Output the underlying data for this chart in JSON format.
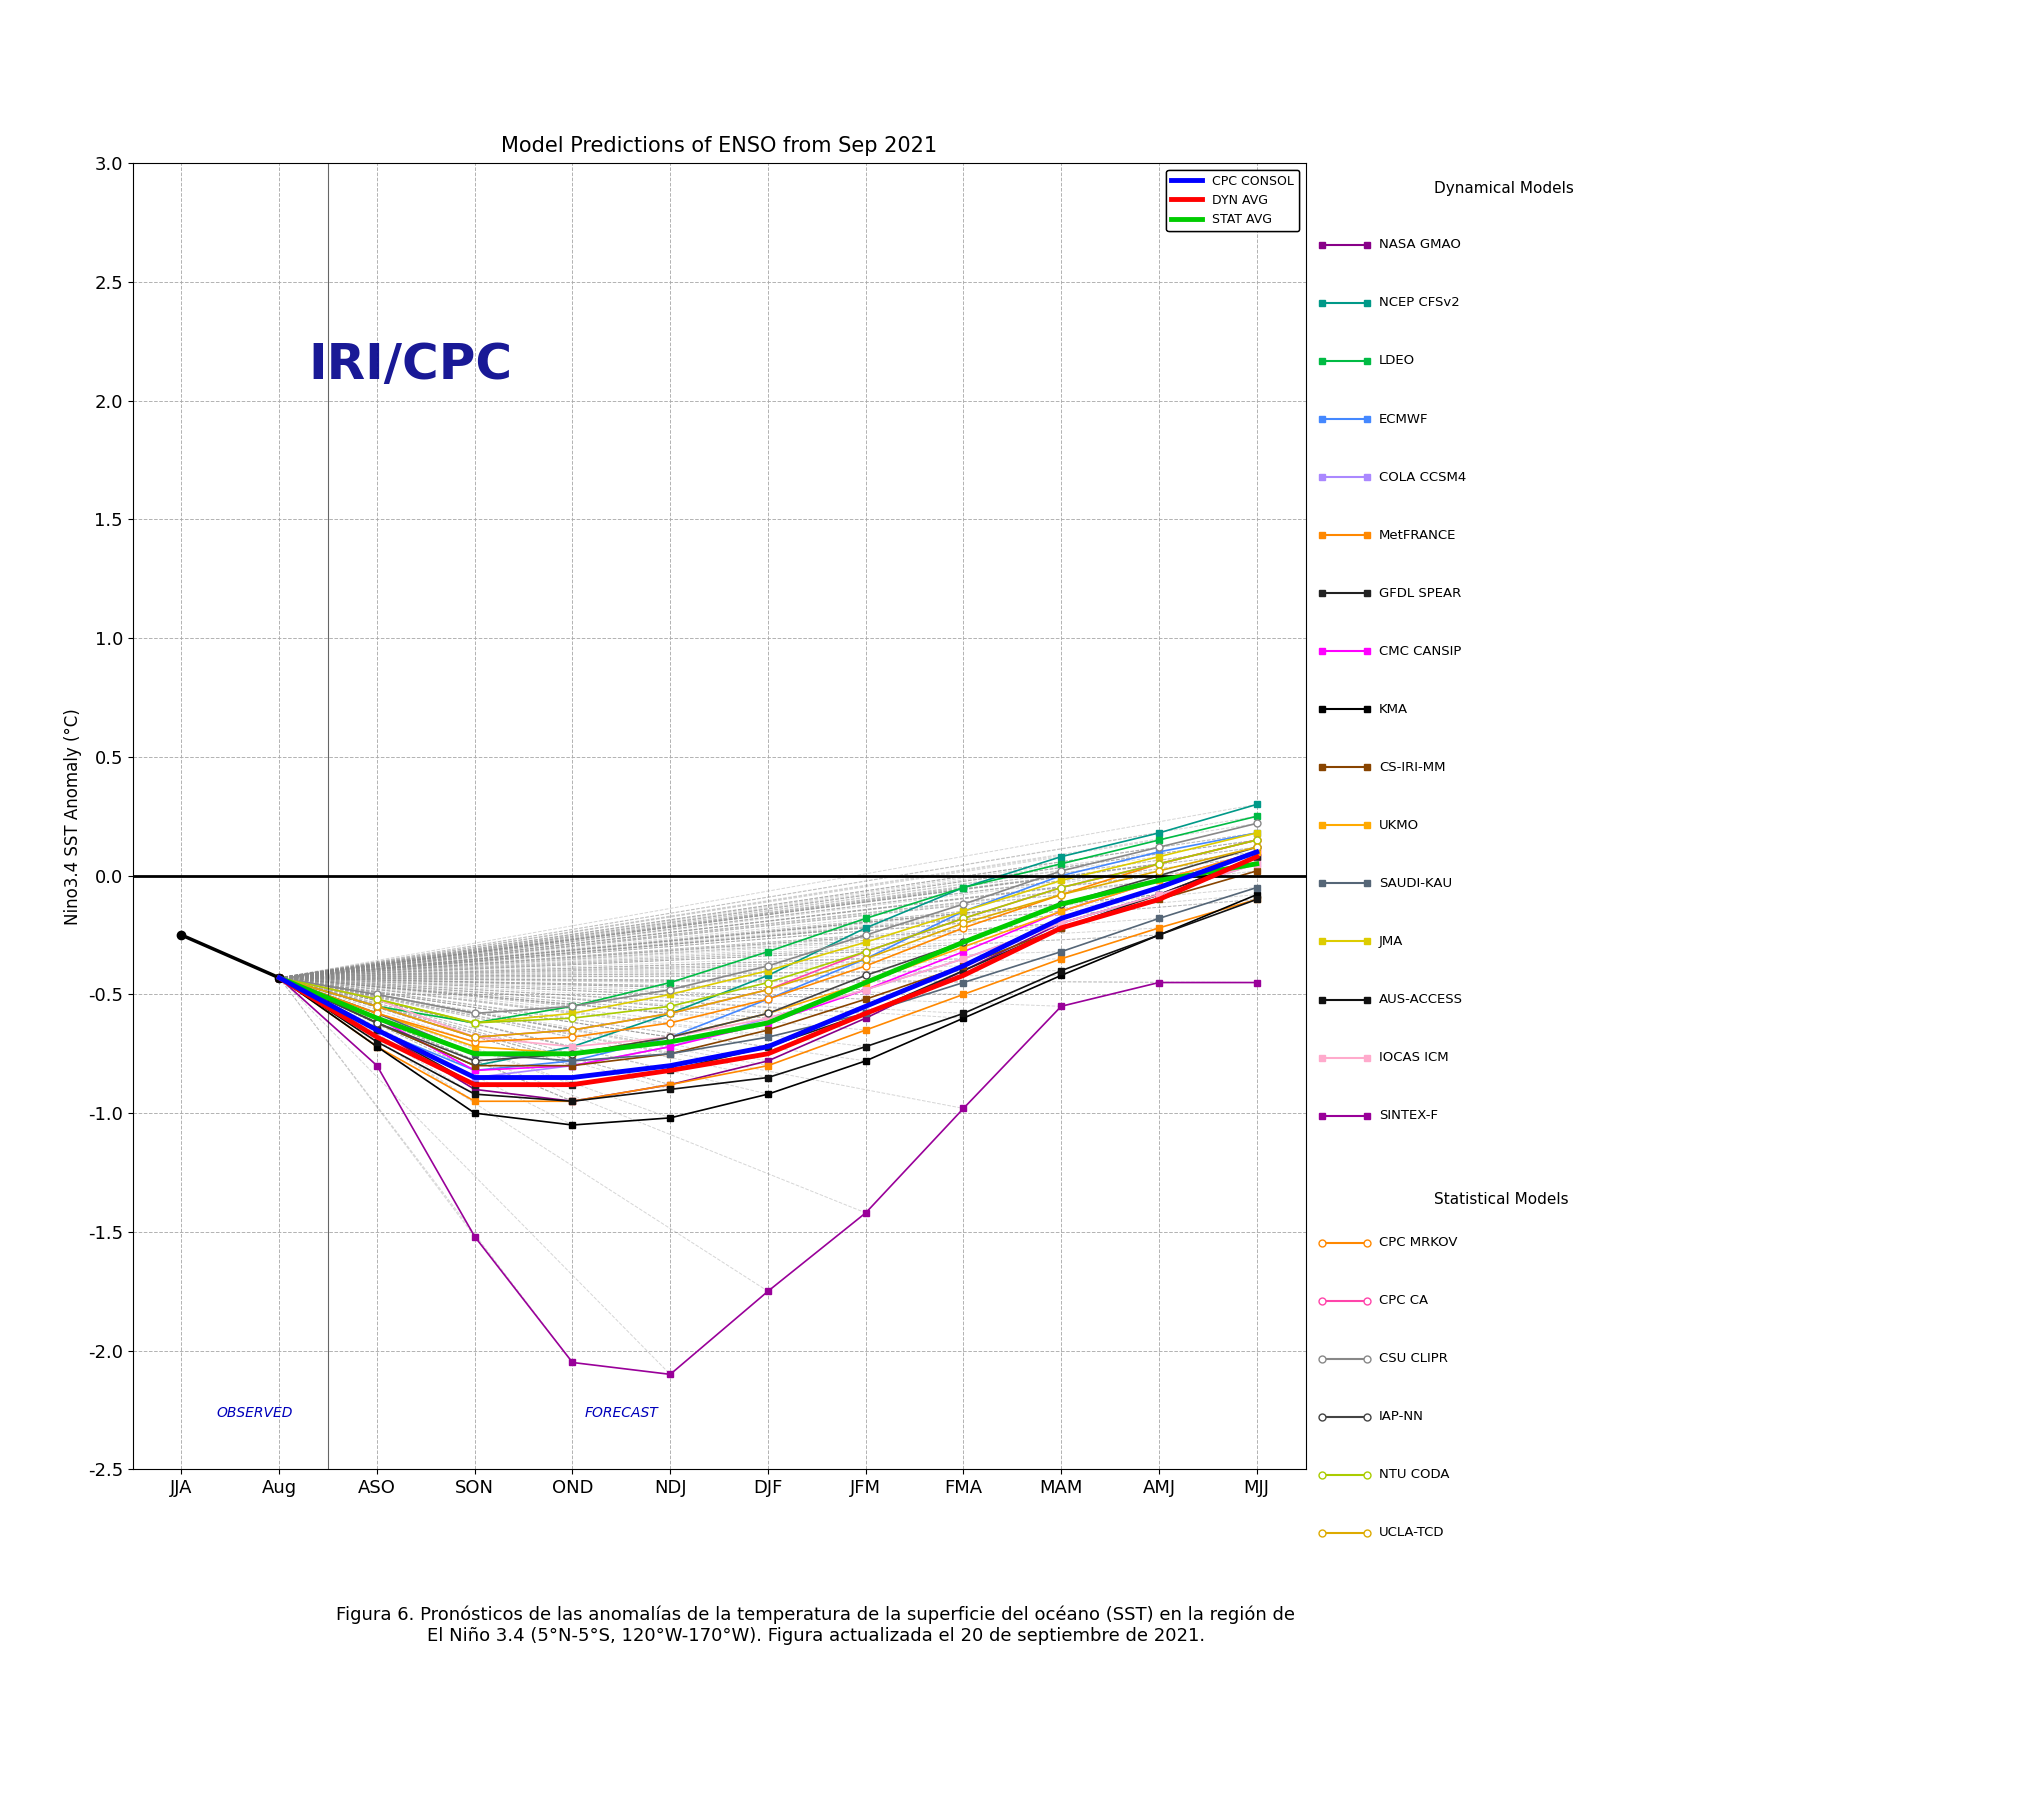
{
  "title": "Model Predictions of ENSO from Sep 2021",
  "ylabel": "Nino3.4 SST Anomaly (°C)",
  "xlabels": [
    "JJA",
    "Aug",
    "ASO",
    "SON",
    "OND",
    "NDJ",
    "DJF",
    "JFM",
    "FMA",
    "MAM",
    "AMJ",
    "MJJ"
  ],
  "ylim": [
    -2.5,
    3.0
  ],
  "yticks": [
    -2.5,
    -2.0,
    -1.5,
    -1.0,
    -0.5,
    0.0,
    0.5,
    1.0,
    1.5,
    2.0,
    2.5,
    3.0
  ],
  "observed_label": "OBSERVED",
  "forecast_label": "FORECAST",
  "iri_cpc_text": "IRI/CPC",
  "caption": "Figura 6. Pronósticos de las anomalías de la temperatura de la superficie del océano (SST) en la región de\nEl Niño 3.4 (5°N-5°S, 120°W-170°W). Figura actualizada el 20 de septiembre de 2021.",
  "background_color": "#ffffff",
  "series": {
    "observed": {
      "x": [
        0,
        1
      ],
      "y": [
        -0.25,
        -0.43
      ],
      "color": "#000000",
      "linewidth": 2.5,
      "linestyle": "-",
      "marker": "o",
      "markersize": 6,
      "zorder": 10
    },
    "CPC_CONSOL": {
      "x": [
        1,
        2,
        3,
        4,
        5,
        6,
        7,
        8,
        9,
        10,
        11
      ],
      "y": [
        -0.43,
        -0.65,
        -0.85,
        -0.85,
        -0.8,
        -0.72,
        -0.55,
        -0.38,
        -0.18,
        -0.05,
        0.1
      ],
      "color": "#0000FF",
      "linewidth": 3.5,
      "linestyle": "-",
      "marker": null,
      "markersize": 0,
      "zorder": 20,
      "label": "CPC CONSOL"
    },
    "DYN_AVG": {
      "x": [
        1,
        2,
        3,
        4,
        5,
        6,
        7,
        8,
        9,
        10,
        11
      ],
      "y": [
        -0.43,
        -0.68,
        -0.88,
        -0.88,
        -0.82,
        -0.75,
        -0.58,
        -0.42,
        -0.22,
        -0.1,
        0.08
      ],
      "color": "#FF0000",
      "linewidth": 3.5,
      "linestyle": "-",
      "marker": null,
      "markersize": 0,
      "zorder": 19,
      "label": "DYN AVG"
    },
    "STAT_AVG": {
      "x": [
        1,
        2,
        3,
        4,
        5,
        6,
        7,
        8,
        9,
        10,
        11
      ],
      "y": [
        -0.43,
        -0.6,
        -0.75,
        -0.75,
        -0.7,
        -0.62,
        -0.45,
        -0.28,
        -0.12,
        -0.02,
        0.05
      ],
      "color": "#00CC00",
      "linewidth": 3.5,
      "linestyle": "-",
      "marker": null,
      "markersize": 0,
      "zorder": 18,
      "label": "STAT AVG"
    },
    "NASA_GMAO": {
      "x": [
        1,
        2,
        3,
        4,
        5,
        6,
        7,
        8,
        9,
        10,
        11
      ],
      "y": [
        -0.43,
        -0.65,
        -0.9,
        -0.95,
        -0.88,
        -0.78,
        -0.6,
        -0.4,
        -0.2,
        -0.08,
        0.08
      ],
      "color": "#880088",
      "linewidth": 1.2,
      "linestyle": "-",
      "marker": "s",
      "markersize": 5,
      "zorder": 5,
      "label": "NASA GMAO"
    },
    "NCEP_CFSv2": {
      "x": [
        1,
        2,
        3,
        4,
        5,
        6,
        7,
        8,
        9,
        10,
        11
      ],
      "y": [
        -0.43,
        -0.62,
        -0.8,
        -0.72,
        -0.58,
        -0.42,
        -0.22,
        -0.05,
        0.08,
        0.18,
        0.3
      ],
      "color": "#009988",
      "linewidth": 1.2,
      "linestyle": "-",
      "marker": "s",
      "markersize": 5,
      "zorder": 5,
      "label": "NCEP CFSv2"
    },
    "LDEO": {
      "x": [
        1,
        2,
        3,
        4,
        5,
        6,
        7,
        8,
        9,
        10,
        11
      ],
      "y": [
        -0.43,
        -0.55,
        -0.62,
        -0.55,
        -0.45,
        -0.32,
        -0.18,
        -0.05,
        0.05,
        0.15,
        0.25
      ],
      "color": "#00BB44",
      "linewidth": 1.2,
      "linestyle": "-",
      "marker": "s",
      "markersize": 5,
      "zorder": 5,
      "label": "LDEO"
    },
    "ECMWF": {
      "x": [
        1,
        2,
        3,
        4,
        5,
        6,
        7,
        8,
        9,
        10,
        11
      ],
      "y": [
        -0.43,
        -0.65,
        -0.82,
        -0.78,
        -0.68,
        -0.52,
        -0.35,
        -0.15,
        0.0,
        0.1,
        0.18
      ],
      "color": "#4488FF",
      "linewidth": 1.2,
      "linestyle": "-",
      "marker": "s",
      "markersize": 5,
      "zorder": 5,
      "label": "ECMWF"
    },
    "COLA_CCSM4": {
      "x": [
        1,
        2,
        3,
        4,
        5,
        6,
        7,
        8,
        9,
        10,
        11
      ],
      "y": [
        -0.43,
        -0.65,
        -0.85,
        -0.8,
        -0.72,
        -0.6,
        -0.48,
        -0.35,
        -0.2,
        -0.08,
        0.05
      ],
      "color": "#AA88FF",
      "linewidth": 1.2,
      "linestyle": "-",
      "marker": "s",
      "markersize": 5,
      "zorder": 5,
      "label": "COLA CCSM4"
    },
    "MetFRANCE": {
      "x": [
        1,
        2,
        3,
        4,
        5,
        6,
        7,
        8,
        9,
        10,
        11
      ],
      "y": [
        -0.43,
        -0.72,
        -0.95,
        -0.95,
        -0.88,
        -0.8,
        -0.65,
        -0.5,
        -0.35,
        -0.22,
        -0.1
      ],
      "color": "#FF8800",
      "linewidth": 1.2,
      "linestyle": "-",
      "marker": "s",
      "markersize": 5,
      "zorder": 5,
      "label": "MetFRANCE"
    },
    "GFDL_SPEAR": {
      "x": [
        1,
        2,
        3,
        4,
        5,
        6,
        7,
        8,
        9,
        10,
        11
      ],
      "y": [
        -0.43,
        -0.65,
        -0.88,
        -0.88,
        -0.82,
        -0.72,
        -0.58,
        -0.4,
        -0.22,
        -0.08,
        0.08
      ],
      "color": "#222222",
      "linewidth": 1.2,
      "linestyle": "-",
      "marker": "s",
      "markersize": 5,
      "zorder": 5,
      "label": "GFDL SPEAR"
    },
    "CMC_CANSIP": {
      "x": [
        1,
        2,
        3,
        4,
        5,
        6,
        7,
        8,
        9,
        10,
        11
      ],
      "y": [
        -0.43,
        -0.6,
        -0.82,
        -0.8,
        -0.72,
        -0.62,
        -0.48,
        -0.32,
        -0.15,
        -0.02,
        0.1
      ],
      "color": "#FF00FF",
      "linewidth": 1.2,
      "linestyle": "-",
      "marker": "s",
      "markersize": 5,
      "zorder": 5,
      "label": "CMC CANSIP"
    },
    "KMA": {
      "x": [
        1,
        2,
        3,
        4,
        5,
        6,
        7,
        8,
        9,
        10,
        11
      ],
      "y": [
        -0.43,
        -0.72,
        -1.0,
        -1.05,
        -1.02,
        -0.92,
        -0.78,
        -0.6,
        -0.42,
        -0.25,
        -0.08
      ],
      "color": "#000000",
      "linewidth": 1.2,
      "linestyle": "-",
      "marker": "s",
      "markersize": 5,
      "zorder": 5,
      "label": "KMA"
    },
    "CS_IRI_MM": {
      "x": [
        1,
        2,
        3,
        4,
        5,
        6,
        7,
        8,
        9,
        10,
        11
      ],
      "y": [
        -0.43,
        -0.62,
        -0.8,
        -0.8,
        -0.75,
        -0.65,
        -0.52,
        -0.38,
        -0.22,
        -0.1,
        0.02
      ],
      "color": "#884400",
      "linewidth": 1.2,
      "linestyle": "-",
      "marker": "s",
      "markersize": 5,
      "zorder": 5,
      "label": "CS-IRI-MM"
    },
    "UKMO": {
      "x": [
        1,
        2,
        3,
        4,
        5,
        6,
        7,
        8,
        9,
        10,
        11
      ],
      "y": [
        -0.43,
        -0.58,
        -0.72,
        -0.75,
        -0.68,
        -0.58,
        -0.45,
        -0.3,
        -0.15,
        -0.02,
        0.1
      ],
      "color": "#FFAA00",
      "linewidth": 1.2,
      "linestyle": "-",
      "marker": "s",
      "markersize": 5,
      "zorder": 5,
      "label": "UKMO"
    },
    "SAUDI_KAU": {
      "x": [
        1,
        2,
        3,
        4,
        5,
        6,
        7,
        8,
        9,
        10,
        11
      ],
      "y": [
        -0.43,
        -0.58,
        -0.75,
        -0.78,
        -0.75,
        -0.68,
        -0.58,
        -0.45,
        -0.32,
        -0.18,
        -0.05
      ],
      "color": "#556677",
      "linewidth": 1.2,
      "linestyle": "-",
      "marker": "s",
      "markersize": 5,
      "zorder": 5,
      "label": "SAUDI-KAU"
    },
    "JMA": {
      "x": [
        1,
        2,
        3,
        4,
        5,
        6,
        7,
        8,
        9,
        10,
        11
      ],
      "y": [
        -0.43,
        -0.52,
        -0.62,
        -0.58,
        -0.5,
        -0.4,
        -0.28,
        -0.15,
        -0.02,
        0.08,
        0.18
      ],
      "color": "#DDCC00",
      "linewidth": 1.2,
      "linestyle": "-",
      "marker": "s",
      "markersize": 5,
      "zorder": 5,
      "label": "JMA"
    },
    "AUS_ACCESS": {
      "x": [
        1,
        2,
        3,
        4,
        5,
        6,
        7,
        8,
        9,
        10,
        11
      ],
      "y": [
        -0.43,
        -0.7,
        -0.92,
        -0.95,
        -0.9,
        -0.85,
        -0.72,
        -0.58,
        -0.4,
        -0.25,
        -0.1
      ],
      "color": "#111111",
      "linewidth": 1.2,
      "linestyle": "-",
      "marker": "s",
      "markersize": 5,
      "zorder": 5,
      "label": "AUS-ACCESS"
    },
    "IOCAS_ICM": {
      "x": [
        1,
        2,
        3,
        4,
        5,
        6,
        7,
        8,
        9,
        10,
        11
      ],
      "y": [
        -0.43,
        -0.52,
        -0.68,
        -0.72,
        -0.68,
        -0.6,
        -0.48,
        -0.35,
        -0.2,
        -0.08,
        0.05
      ],
      "color": "#FFAACC",
      "linewidth": 1.2,
      "linestyle": "-",
      "marker": "s",
      "markersize": 5,
      "zorder": 5,
      "label": "IOCAS ICM"
    },
    "SINTEX_F": {
      "x": [
        1,
        2,
        3,
        4,
        5,
        6,
        7,
        8,
        9,
        10,
        11
      ],
      "y": [
        -0.43,
        -0.8,
        -1.52,
        -2.05,
        -2.1,
        -1.75,
        -1.42,
        -0.98,
        -0.55,
        -0.45,
        -0.45
      ],
      "color": "#990099",
      "linewidth": 1.2,
      "linestyle": "-",
      "marker": "s",
      "markersize": 5,
      "zorder": 5,
      "label": "SINTEX-F"
    },
    "CPC_MRKOV": {
      "x": [
        1,
        2,
        3,
        4,
        5,
        6,
        7,
        8,
        9,
        10,
        11
      ],
      "y": [
        -0.43,
        -0.58,
        -0.7,
        -0.68,
        -0.62,
        -0.52,
        -0.38,
        -0.22,
        -0.08,
        0.05,
        0.15
      ],
      "color": "#FF8800",
      "linewidth": 1.2,
      "linestyle": "-",
      "marker": "o",
      "markersize": 5,
      "markerfacecolor": "white",
      "zorder": 6,
      "label": "CPC MRKOV"
    },
    "CPC_CA": {
      "x": [
        1,
        2,
        3,
        4,
        5,
        6,
        7,
        8,
        9,
        10,
        11
      ],
      "y": [
        -0.43,
        -0.55,
        -0.68,
        -0.65,
        -0.58,
        -0.48,
        -0.32,
        -0.18,
        -0.05,
        0.05,
        0.15
      ],
      "color": "#FF44AA",
      "linewidth": 1.2,
      "linestyle": "-",
      "marker": "o",
      "markersize": 5,
      "markerfacecolor": "white",
      "zorder": 6,
      "label": "CPC CA"
    },
    "CSU_CLIPR": {
      "x": [
        1,
        2,
        3,
        4,
        5,
        6,
        7,
        8,
        9,
        10,
        11
      ],
      "y": [
        -0.43,
        -0.5,
        -0.58,
        -0.55,
        -0.48,
        -0.38,
        -0.25,
        -0.12,
        0.02,
        0.12,
        0.22
      ],
      "color": "#888888",
      "linewidth": 1.2,
      "linestyle": "-",
      "marker": "o",
      "markersize": 5,
      "markerfacecolor": "white",
      "zorder": 6,
      "label": "CSU CLIPR"
    },
    "IAP_NN": {
      "x": [
        1,
        2,
        3,
        4,
        5,
        6,
        7,
        8,
        9,
        10,
        11
      ],
      "y": [
        -0.43,
        -0.62,
        -0.78,
        -0.75,
        -0.68,
        -0.58,
        -0.42,
        -0.28,
        -0.12,
        0.0,
        0.12
      ],
      "color": "#444444",
      "linewidth": 1.2,
      "linestyle": "-",
      "marker": "o",
      "markersize": 5,
      "markerfacecolor": "white",
      "zorder": 6,
      "label": "IAP-NN"
    },
    "NTU_CODA": {
      "x": [
        1,
        2,
        3,
        4,
        5,
        6,
        7,
        8,
        9,
        10,
        11
      ],
      "y": [
        -0.43,
        -0.52,
        -0.62,
        -0.6,
        -0.55,
        -0.45,
        -0.32,
        -0.18,
        -0.05,
        0.05,
        0.15
      ],
      "color": "#AACC00",
      "linewidth": 1.2,
      "linestyle": "-",
      "marker": "o",
      "markersize": 5,
      "markerfacecolor": "white",
      "zorder": 6,
      "label": "NTU CODA"
    },
    "UCLA_TCD": {
      "x": [
        1,
        2,
        3,
        4,
        5,
        6,
        7,
        8,
        9,
        10,
        11
      ],
      "y": [
        -0.43,
        -0.55,
        -0.68,
        -0.65,
        -0.58,
        -0.48,
        -0.35,
        -0.2,
        -0.08,
        0.02,
        0.12
      ],
      "color": "#DDAA00",
      "linewidth": 1.2,
      "linestyle": "-",
      "marker": "o",
      "markersize": 5,
      "markerfacecolor": "white",
      "zorder": 6,
      "label": "UCLA-TCD"
    }
  }
}
